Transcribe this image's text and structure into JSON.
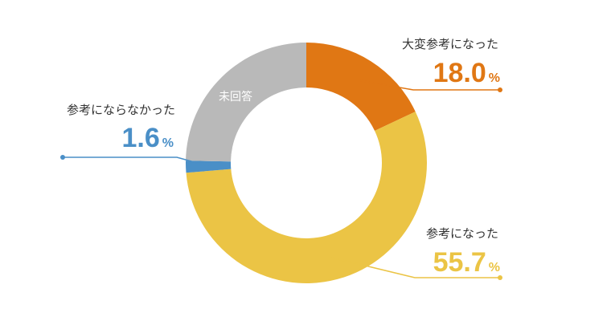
{
  "chart_data": {
    "type": "pie",
    "donut": true,
    "unit": "%",
    "slices": [
      {
        "label": "大変参考になった",
        "value": 18.0,
        "display": "18.0",
        "color": "#e07714"
      },
      {
        "label": "参考になった",
        "value": 55.7,
        "display": "55.7",
        "color": "#ebc445"
      },
      {
        "label": "参考にならなかった",
        "value": 1.6,
        "display": "1.6",
        "color": "#4a8fc7"
      },
      {
        "label": "未回答",
        "value": 24.7,
        "display": "",
        "color": "#b9b9b9"
      }
    ]
  }
}
